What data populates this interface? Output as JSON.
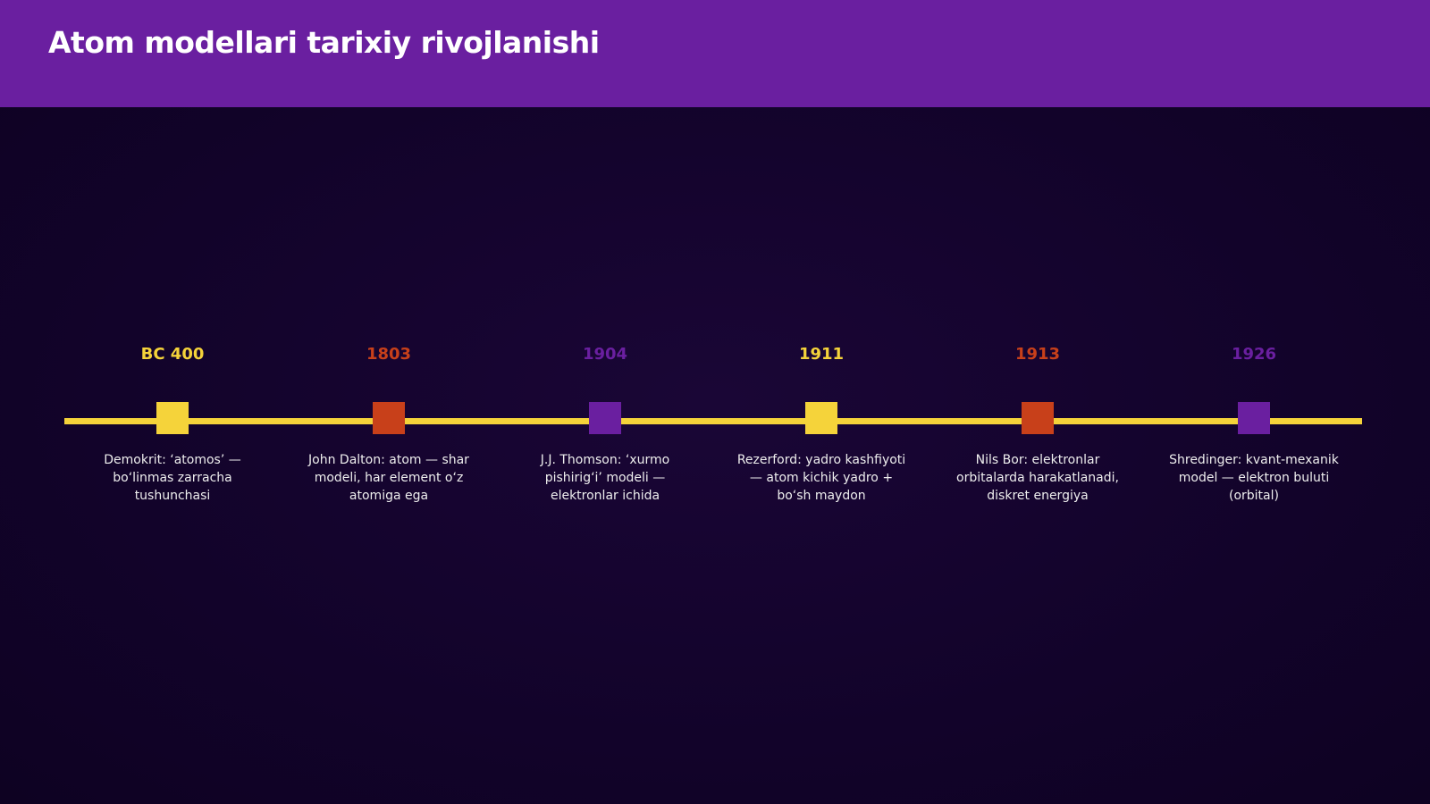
{
  "header": {
    "title": "Atom modellari tarixiy rivojlanishi"
  },
  "timeline": {
    "events": [
      {
        "year": "BC 400",
        "text": "Demokrit: ‘atomos’ — bo‘linmas zarracha tushunchasi"
      },
      {
        "year": "1803",
        "text": "John Dalton: atom — shar modeli, har element o‘z atomiga ega"
      },
      {
        "year": "1904",
        "text": "J.J. Thomson: ‘xurmo pishirig‘i’ modeli — elektronlar ichida"
      },
      {
        "year": "1911",
        "text": "Rezerford: yadro kashfiyoti — atom kichik yadro + bo‘sh maydon"
      },
      {
        "year": "1913",
        "text": "Nils Bor: elektronlar orbitalarda harakatlanadi, diskret energiya"
      },
      {
        "year": "1926",
        "text": "Shredinger: kvant-mexanik model — elektron buluti (orbital)"
      }
    ]
  }
}
